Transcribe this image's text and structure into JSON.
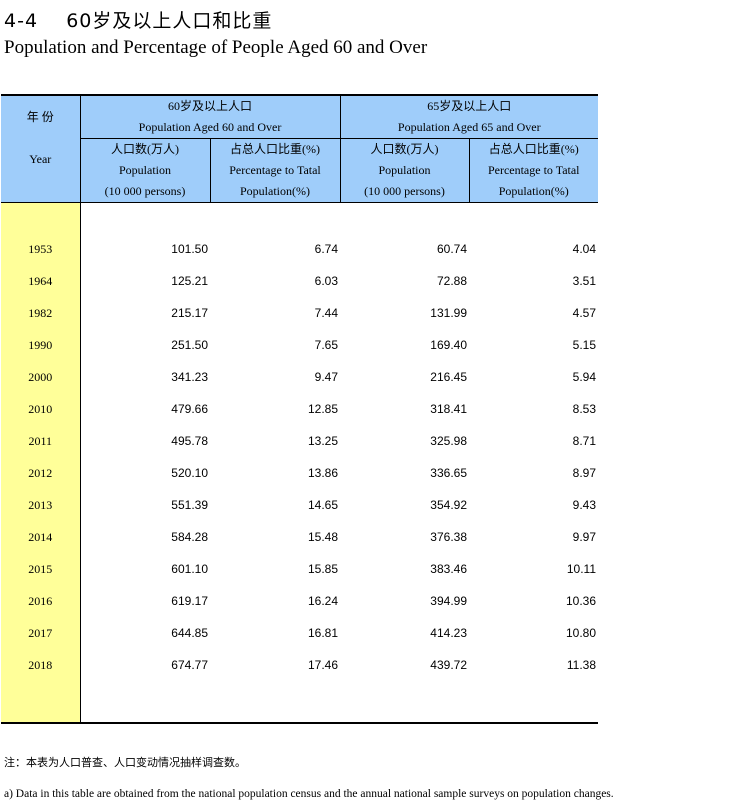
{
  "title": {
    "number": "4-4",
    "cn": "60岁及以上人口和比重",
    "en": "Population and Percentage of People Aged 60 and Over"
  },
  "header": {
    "year_cn": "年 份",
    "year_en": "Year",
    "group60_cn": "60岁及以上人口",
    "group60_en": "Population Aged 60 and Over",
    "group65_cn": "65岁及以上人口",
    "group65_en": "Population Aged 65 and Over",
    "pop_cn": "人口数(万人)",
    "pop_en": "Population",
    "pop_unit": "(10 000 persons)",
    "pct_cn": "占总人口比重(%)",
    "pct_en": "Percentage to Tatal",
    "pct_unit": "Population(%)"
  },
  "rows": [
    {
      "year": "1953",
      "pop60": "101.50",
      "pct60": "6.74",
      "pop65": "60.74",
      "pct65": "4.04"
    },
    {
      "year": "1964",
      "pop60": "125.21",
      "pct60": "6.03",
      "pop65": "72.88",
      "pct65": "3.51"
    },
    {
      "year": "1982",
      "pop60": "215.17",
      "pct60": "7.44",
      "pop65": "131.99",
      "pct65": "4.57"
    },
    {
      "year": "1990",
      "pop60": "251.50",
      "pct60": "7.65",
      "pop65": "169.40",
      "pct65": "5.15"
    },
    {
      "year": "2000",
      "pop60": "341.23",
      "pct60": "9.47",
      "pop65": "216.45",
      "pct65": "5.94"
    },
    {
      "year": "2010",
      "pop60": "479.66",
      "pct60": "12.85",
      "pop65": "318.41",
      "pct65": "8.53"
    },
    {
      "year": "2011",
      "pop60": "495.78",
      "pct60": "13.25",
      "pop65": "325.98",
      "pct65": "8.71"
    },
    {
      "year": "2012",
      "pop60": "520.10",
      "pct60": "13.86",
      "pop65": "336.65",
      "pct65": "8.97"
    },
    {
      "year": "2013",
      "pop60": "551.39",
      "pct60": "14.65",
      "pop65": "354.92",
      "pct65": "9.43"
    },
    {
      "year": "2014",
      "pop60": "584.28",
      "pct60": "15.48",
      "pop65": "376.38",
      "pct65": "9.97"
    },
    {
      "year": "2015",
      "pop60": "601.10",
      "pct60": "15.85",
      "pop65": "383.46",
      "pct65": "10.11"
    },
    {
      "year": "2016",
      "pop60": "619.17",
      "pct60": "16.24",
      "pop65": "394.99",
      "pct65": "10.36"
    },
    {
      "year": "2017",
      "pop60": "644.85",
      "pct60": "16.81",
      "pop65": "414.23",
      "pct65": "10.80"
    },
    {
      "year": "2018",
      "pop60": "674.77",
      "pct60": "17.46",
      "pop65": "439.72",
      "pct65": "11.38"
    }
  ],
  "notes": {
    "cn": "注：本表为人口普查、人口变动情况抽样调查数。",
    "en": "a) Data in this table are obtained from the national population census and the annual national sample surveys on population changes."
  },
  "colors": {
    "header_bg": "#9fcdfa",
    "year_col_bg": "#ffff99"
  }
}
